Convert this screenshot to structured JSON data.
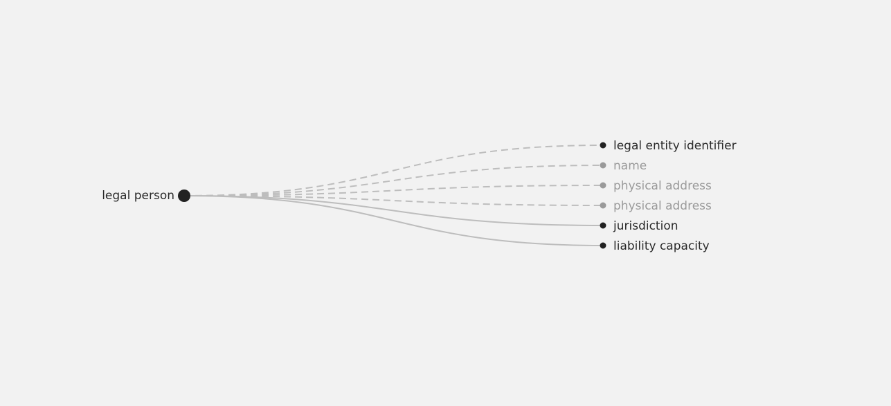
{
  "root": {
    "label": "legal person"
  },
  "children": [
    {
      "label": "legal entity identifier",
      "state": "active",
      "line": "dashed"
    },
    {
      "label": "name",
      "state": "muted",
      "line": "dashed"
    },
    {
      "label": "physical address",
      "state": "muted",
      "line": "dashed"
    },
    {
      "label": "physical address",
      "state": "muted",
      "line": "dashed"
    },
    {
      "label": "jurisdiction",
      "state": "active",
      "line": "solid"
    },
    {
      "label": "liability capacity",
      "state": "active",
      "line": "solid"
    }
  ],
  "colors": {
    "background": "#f2f2f2",
    "node_dark": "#222222",
    "node_muted": "#9a9a9a",
    "link": "#bdbdbd",
    "text_dark": "#2a2a2a",
    "text_muted": "#9a9a9a"
  }
}
